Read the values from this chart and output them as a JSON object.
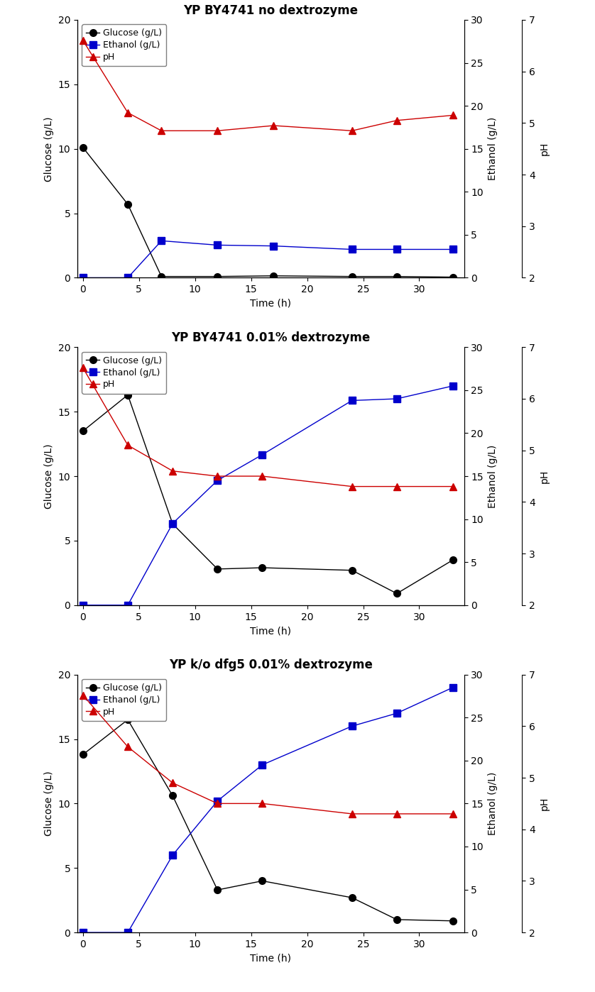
{
  "panels": [
    {
      "title": "YP BY4741 no dextrozyme",
      "time": [
        0,
        4,
        7,
        12,
        17,
        24,
        28,
        33
      ],
      "glucose": [
        10.1,
        5.7,
        0.1,
        0.1,
        0.15,
        0.1,
        0.1,
        0.05
      ],
      "ethanol": [
        0,
        0,
        4.3,
        3.8,
        3.7,
        3.3,
        3.3,
        3.3
      ],
      "pH": [
        6.6,
        5.2,
        4.85,
        4.85,
        4.95,
        4.85,
        5.05,
        5.15
      ]
    },
    {
      "title": "YP BY4741 0.01% dextrozyme",
      "time": [
        0,
        4,
        8,
        12,
        16,
        24,
        28,
        33
      ],
      "glucose": [
        13.5,
        16.3,
        6.3,
        2.8,
        2.9,
        2.7,
        0.9,
        3.5
      ],
      "ethanol": [
        0,
        0,
        9.5,
        14.5,
        17.5,
        23.8,
        24.0,
        25.5
      ],
      "pH": [
        6.6,
        5.1,
        4.6,
        4.5,
        4.5,
        4.3,
        4.3,
        4.3
      ]
    },
    {
      "title": "YP k/o dfg5 0.01% dextrozyme",
      "time": [
        0,
        4,
        8,
        12,
        16,
        24,
        28,
        33
      ],
      "glucose": [
        13.8,
        16.5,
        10.6,
        3.3,
        4.0,
        2.7,
        1.0,
        0.9
      ],
      "ethanol": [
        0,
        0,
        9.0,
        15.3,
        19.5,
        24.0,
        25.5,
        28.5
      ],
      "pH": [
        6.6,
        5.6,
        4.9,
        4.5,
        4.5,
        4.3,
        4.3,
        4.3
      ]
    }
  ],
  "xlabel": "Time (h)",
  "ylabel_left": "Glucose (g/L)",
  "ylabel_right_ethanol": "Ethanol (g/L)",
  "ylabel_right_pH": "pH",
  "glucose_color": "#000000",
  "ethanol_color": "#0000cc",
  "pH_color": "#cc0000",
  "line_color": "#555555",
  "glucose_marker": "o",
  "ethanol_marker": "s",
  "pH_marker": "^",
  "ylim_glucose": [
    0,
    20
  ],
  "ylim_ethanol": [
    0,
    30
  ],
  "ylim_pH": [
    2,
    7
  ],
  "xticks": [
    0,
    5,
    10,
    15,
    20,
    25,
    30
  ],
  "yticks_glucose": [
    0,
    5,
    10,
    15,
    20
  ],
  "yticks_ethanol": [
    0,
    5,
    10,
    15,
    20,
    25,
    30
  ],
  "yticks_pH": [
    2,
    3,
    4,
    5,
    6,
    7
  ],
  "legend_labels": [
    "Glucose (g/L)",
    "Ethanol (g/L)",
    "pH"
  ],
  "marker_size": 7,
  "line_width": 1.0,
  "font_size": 10,
  "title_font_size": 12,
  "legend_fontsize": 9
}
